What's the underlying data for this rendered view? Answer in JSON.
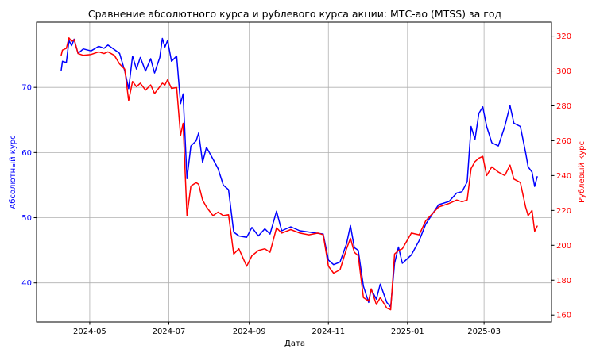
{
  "chart_data": {
    "type": "line",
    "title": "Сравнение абсолютного курса и рублевого курса акции: МТС-ао (MTSS) за год",
    "xlabel": "Дата",
    "ylabel_left": "Абсолютный курс",
    "ylabel_right": "Рублевый курс",
    "colors": {
      "left": "#0000ff",
      "right": "#ff0000",
      "grid": "#b0b0b0"
    },
    "grid": true,
    "x_ticks": [
      "2024-05",
      "2024-07",
      "2024-09",
      "2024-11",
      "2025-01",
      "2025-03"
    ],
    "x_range": [
      "2024-03-21",
      "2025-04-22"
    ],
    "ylim_left": [
      34,
      80
    ],
    "ylim_right": [
      156,
      328
    ],
    "y_ticks_left": [
      40,
      50,
      60,
      70
    ],
    "y_ticks_right": [
      160,
      180,
      200,
      220,
      240,
      260,
      280,
      300,
      320
    ],
    "series": [
      {
        "axis": "left",
        "points": [
          [
            "2024-04-09",
            72.6
          ],
          [
            "2024-04-10",
            74.0
          ],
          [
            "2024-04-13",
            73.8
          ],
          [
            "2024-04-15",
            77.2
          ],
          [
            "2024-04-17",
            76.4
          ],
          [
            "2024-04-19",
            77.4
          ],
          [
            "2024-04-22",
            75.2
          ],
          [
            "2024-04-26",
            75.9
          ],
          [
            "2024-05-02",
            75.6
          ],
          [
            "2024-05-08",
            76.3
          ],
          [
            "2024-05-12",
            76.0
          ],
          [
            "2024-05-15",
            76.5
          ],
          [
            "2024-05-20",
            75.8
          ],
          [
            "2024-05-24",
            75.2
          ],
          [
            "2024-05-28",
            72.5
          ],
          [
            "2024-05-31",
            69.8
          ],
          [
            "2024-06-03",
            74.8
          ],
          [
            "2024-06-06",
            72.8
          ],
          [
            "2024-06-09",
            74.6
          ],
          [
            "2024-06-13",
            72.5
          ],
          [
            "2024-06-17",
            74.4
          ],
          [
            "2024-06-20",
            72.2
          ],
          [
            "2024-06-24",
            74.6
          ],
          [
            "2024-06-26",
            77.5
          ],
          [
            "2024-06-28",
            76.2
          ],
          [
            "2024-06-30",
            77.2
          ],
          [
            "2024-07-03",
            74.0
          ],
          [
            "2024-07-07",
            74.8
          ],
          [
            "2024-07-10",
            67.5
          ],
          [
            "2024-07-12",
            69.0
          ],
          [
            "2024-07-15",
            56.0
          ],
          [
            "2024-07-18",
            61.0
          ],
          [
            "2024-07-22",
            61.8
          ],
          [
            "2024-07-24",
            63.0
          ],
          [
            "2024-07-27",
            58.5
          ],
          [
            "2024-07-30",
            60.8
          ],
          [
            "2024-08-04",
            59.0
          ],
          [
            "2024-08-08",
            57.5
          ],
          [
            "2024-08-12",
            55.0
          ],
          [
            "2024-08-16",
            54.3
          ],
          [
            "2024-08-20",
            47.8
          ],
          [
            "2024-08-24",
            47.2
          ],
          [
            "2024-08-30",
            47.0
          ],
          [
            "2024-09-03",
            48.5
          ],
          [
            "2024-09-08",
            47.2
          ],
          [
            "2024-09-13",
            48.3
          ],
          [
            "2024-09-17",
            47.5
          ],
          [
            "2024-09-22",
            51.0
          ],
          [
            "2024-09-26",
            48.0
          ],
          [
            "2024-10-03",
            48.6
          ],
          [
            "2024-10-10",
            48.0
          ],
          [
            "2024-10-17",
            47.8
          ],
          [
            "2024-10-24",
            47.6
          ],
          [
            "2024-10-28",
            47.5
          ],
          [
            "2024-11-01",
            43.5
          ],
          [
            "2024-11-05",
            42.8
          ],
          [
            "2024-11-10",
            43.2
          ],
          [
            "2024-11-15",
            46.0
          ],
          [
            "2024-11-18",
            48.8
          ],
          [
            "2024-11-21",
            45.4
          ],
          [
            "2024-11-24",
            45.0
          ],
          [
            "2024-11-28",
            39.5
          ],
          [
            "2024-12-02",
            37.0
          ],
          [
            "2024-12-04",
            39.0
          ],
          [
            "2024-12-08",
            37.5
          ],
          [
            "2024-12-11",
            39.8
          ],
          [
            "2024-12-16",
            37.0
          ],
          [
            "2024-12-19",
            36.3
          ],
          [
            "2024-12-22",
            43.0
          ],
          [
            "2024-12-25",
            45.5
          ],
          [
            "2024-12-28",
            43.0
          ],
          [
            "2025-01-04",
            44.3
          ],
          [
            "2025-01-10",
            46.5
          ],
          [
            "2025-01-15",
            49.0
          ],
          [
            "2025-01-20",
            50.5
          ],
          [
            "2025-01-25",
            52.0
          ],
          [
            "2025-02-02",
            52.5
          ],
          [
            "2025-02-08",
            53.8
          ],
          [
            "2025-02-12",
            54.0
          ],
          [
            "2025-02-16",
            55.5
          ],
          [
            "2025-02-19",
            64.0
          ],
          [
            "2025-02-22",
            62.0
          ],
          [
            "2025-02-25",
            66.0
          ],
          [
            "2025-02-28",
            67.0
          ],
          [
            "2025-03-03",
            64.0
          ],
          [
            "2025-03-07",
            61.5
          ],
          [
            "2025-03-12",
            61.0
          ],
          [
            "2025-03-17",
            64.0
          ],
          [
            "2025-03-21",
            67.2
          ],
          [
            "2025-03-24",
            64.5
          ],
          [
            "2025-03-29",
            64.0
          ],
          [
            "2025-04-02",
            60.0
          ],
          [
            "2025-04-04",
            57.8
          ],
          [
            "2025-04-07",
            57.0
          ],
          [
            "2025-04-09",
            54.8
          ],
          [
            "2025-04-11",
            56.3
          ]
        ]
      },
      {
        "axis": "right",
        "points": [
          [
            "2024-04-09",
            309.0
          ],
          [
            "2024-04-10",
            312.0
          ],
          [
            "2024-04-13",
            313.0
          ],
          [
            "2024-04-15",
            319.0
          ],
          [
            "2024-04-17",
            317.0
          ],
          [
            "2024-04-19",
            318.0
          ],
          [
            "2024-04-22",
            310.0
          ],
          [
            "2024-04-26",
            309.0
          ],
          [
            "2024-05-02",
            309.5
          ],
          [
            "2024-05-08",
            311.0
          ],
          [
            "2024-05-12",
            310.0
          ],
          [
            "2024-05-15",
            311.0
          ],
          [
            "2024-05-20",
            309.0
          ],
          [
            "2024-05-24",
            304.0
          ],
          [
            "2024-05-28",
            301.0
          ],
          [
            "2024-05-31",
            283.0
          ],
          [
            "2024-06-03",
            294.0
          ],
          [
            "2024-06-06",
            291.0
          ],
          [
            "2024-06-09",
            293.0
          ],
          [
            "2024-06-13",
            289.0
          ],
          [
            "2024-06-17",
            292.0
          ],
          [
            "2024-06-20",
            287.0
          ],
          [
            "2024-06-24",
            291.0
          ],
          [
            "2024-06-26",
            293.0
          ],
          [
            "2024-06-28",
            292.0
          ],
          [
            "2024-06-30",
            295.0
          ],
          [
            "2024-07-03",
            290.0
          ],
          [
            "2024-07-07",
            290.5
          ],
          [
            "2024-07-10",
            263.0
          ],
          [
            "2024-07-12",
            270.0
          ],
          [
            "2024-07-15",
            217.0
          ],
          [
            "2024-07-18",
            234.0
          ],
          [
            "2024-07-22",
            236.0
          ],
          [
            "2024-07-24",
            235.0
          ],
          [
            "2024-07-27",
            226.0
          ],
          [
            "2024-07-30",
            222.0
          ],
          [
            "2024-08-04",
            217.0
          ],
          [
            "2024-08-08",
            219.0
          ],
          [
            "2024-08-12",
            217.0
          ],
          [
            "2024-08-16",
            217.5
          ],
          [
            "2024-08-20",
            195.0
          ],
          [
            "2024-08-24",
            198.0
          ],
          [
            "2024-08-30",
            188.0
          ],
          [
            "2024-09-03",
            194.0
          ],
          [
            "2024-09-08",
            197.0
          ],
          [
            "2024-09-13",
            198.0
          ],
          [
            "2024-09-17",
            196.0
          ],
          [
            "2024-09-22",
            210.0
          ],
          [
            "2024-09-26",
            207.0
          ],
          [
            "2024-10-03",
            209.0
          ],
          [
            "2024-10-10",
            207.0
          ],
          [
            "2024-10-17",
            206.0
          ],
          [
            "2024-10-24",
            207.0
          ],
          [
            "2024-10-28",
            206.0
          ],
          [
            "2024-11-01",
            188.0
          ],
          [
            "2024-11-05",
            184.0
          ],
          [
            "2024-11-10",
            186.0
          ],
          [
            "2024-11-15",
            198.0
          ],
          [
            "2024-11-18",
            204.0
          ],
          [
            "2024-11-21",
            196.0
          ],
          [
            "2024-11-24",
            194.0
          ],
          [
            "2024-11-28",
            170.0
          ],
          [
            "2024-12-02",
            168.0
          ],
          [
            "2024-12-04",
            175.0
          ],
          [
            "2024-12-08",
            166.0
          ],
          [
            "2024-12-11",
            170.0
          ],
          [
            "2024-12-16",
            164.0
          ],
          [
            "2024-12-19",
            163.0
          ],
          [
            "2024-12-22",
            195.0
          ],
          [
            "2024-12-25",
            197.0
          ],
          [
            "2024-12-28",
            198.0
          ],
          [
            "2025-01-04",
            207.0
          ],
          [
            "2025-01-10",
            206.0
          ],
          [
            "2025-01-15",
            214.0
          ],
          [
            "2025-01-20",
            218.0
          ],
          [
            "2025-01-25",
            222.0
          ],
          [
            "2025-02-02",
            224.0
          ],
          [
            "2025-02-08",
            226.0
          ],
          [
            "2025-02-12",
            225.0
          ],
          [
            "2025-02-16",
            226.0
          ],
          [
            "2025-02-19",
            244.0
          ],
          [
            "2025-02-22",
            248.0
          ],
          [
            "2025-02-25",
            250.0
          ],
          [
            "2025-02-28",
            251.0
          ],
          [
            "2025-03-03",
            240.0
          ],
          [
            "2025-03-07",
            245.0
          ],
          [
            "2025-03-12",
            242.0
          ],
          [
            "2025-03-17",
            240.0
          ],
          [
            "2025-03-21",
            246.0
          ],
          [
            "2025-03-24",
            238.0
          ],
          [
            "2025-03-29",
            236.0
          ],
          [
            "2025-04-02",
            222.0
          ],
          [
            "2025-04-04",
            217.0
          ],
          [
            "2025-04-07",
            220.0
          ],
          [
            "2025-04-09",
            208.0
          ],
          [
            "2025-04-11",
            211.0
          ]
        ]
      }
    ]
  }
}
